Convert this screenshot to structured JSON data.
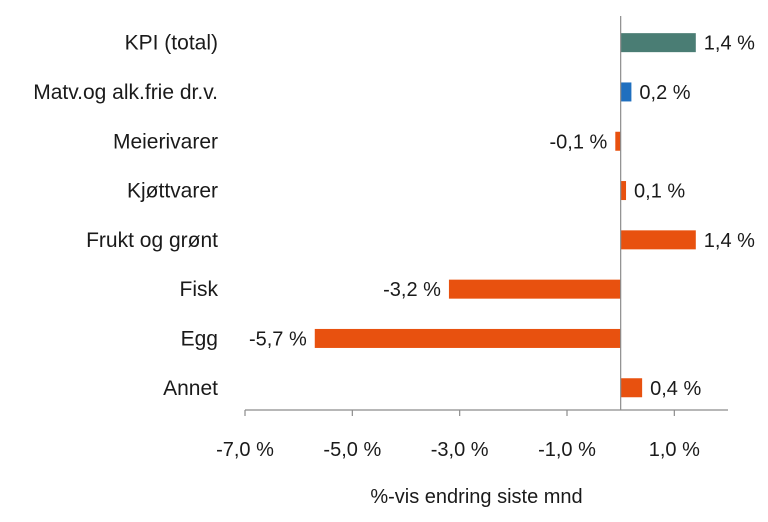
{
  "chart_data": {
    "type": "bar",
    "orientation": "horizontal",
    "title": "",
    "xlabel": "%-vis endring siste mnd",
    "ylabel": "",
    "categories": [
      "KPI (total)",
      "Matv.og alk.frie dr.v.",
      "Meierivarer",
      "Kjøttvarer",
      "Frukt og grønt",
      "Fisk",
      "Egg",
      "Annet"
    ],
    "values": [
      1.4,
      0.2,
      -0.1,
      0.1,
      1.4,
      -3.2,
      -5.7,
      0.4
    ],
    "value_labels": [
      "1,4 %",
      "0,2 %",
      "-0,1 %",
      "0,1 %",
      "1,4 %",
      "-3,2 %",
      "-5,7 %",
      "0,4 %"
    ],
    "bar_colors": [
      "#4a7d74",
      "#1f6fbf",
      "#e8510f",
      "#e8510f",
      "#e8510f",
      "#e8510f",
      "#e8510f",
      "#e8510f"
    ],
    "xlim": [
      -7.0,
      2.0
    ],
    "xticks": [
      -7.0,
      -5.0,
      -3.0,
      -1.0,
      1.0
    ],
    "xtick_labels": [
      "-7,0 %",
      "-5,0 %",
      "-3,0 %",
      "-1,0 %",
      "1,0 %"
    ],
    "grid": false,
    "legend": "none"
  }
}
